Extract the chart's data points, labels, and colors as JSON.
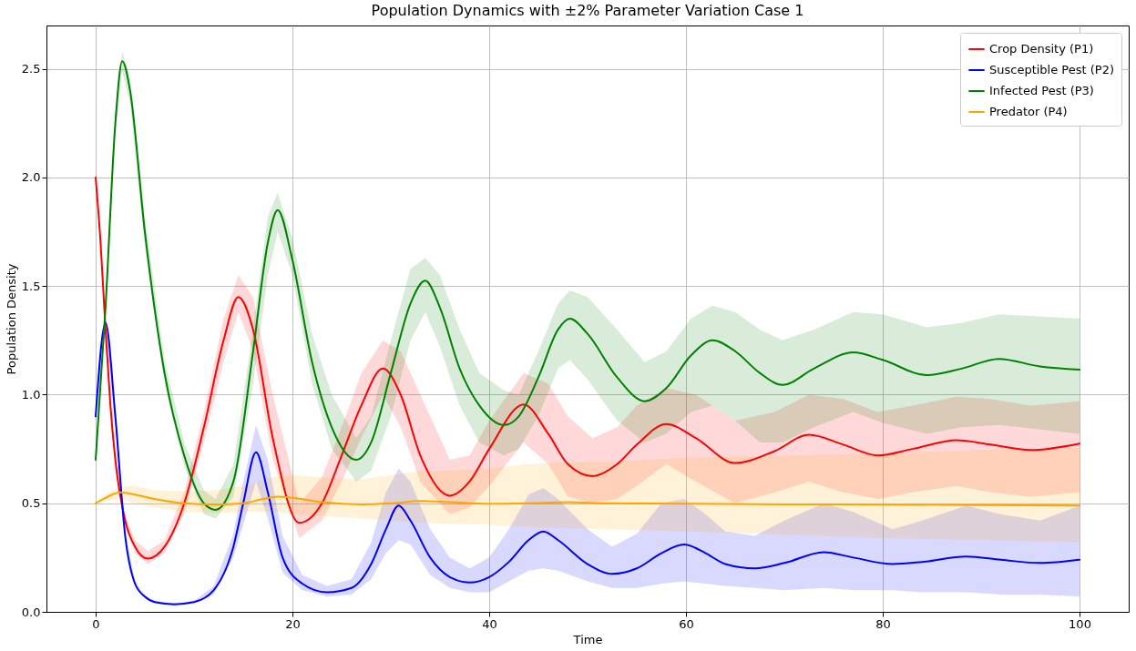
{
  "chart_data": {
    "type": "line",
    "title": "Population Dynamics with ±2% Parameter Variation Case 1",
    "xlabel": "Time",
    "ylabel": "Population Density",
    "xlim": [
      -5,
      105
    ],
    "ylim": [
      0,
      2.7
    ],
    "xticks": [
      0,
      20,
      40,
      60,
      80,
      100
    ],
    "yticks": [
      {
        "value": 0,
        "label": "0.0"
      },
      {
        "value": 0.5,
        "label": "0.5"
      },
      {
        "value": 1,
        "label": "1.0"
      },
      {
        "value": 1.5,
        "label": "1.5"
      },
      {
        "value": 2,
        "label": "2.0"
      },
      {
        "value": 2.5,
        "label": "2.5"
      }
    ],
    "grid": true,
    "legend": "top right",
    "series": [
      {
        "name": "Crop Density (P1)",
        "color": "#ff0000",
        "x": [
          0,
          0.5,
          1,
          1.5,
          2,
          3,
          4,
          5.3,
          7,
          9,
          11,
          13,
          14.5,
          16,
          18,
          20.7,
          23,
          25,
          27,
          29.2,
          31,
          33,
          36,
          38,
          40,
          43.5,
          46,
          48,
          50.5,
          53,
          55,
          58,
          61,
          65,
          69,
          72.5,
          76,
          79.5,
          83,
          87.5,
          91,
          95,
          100
        ],
        "values": [
          2.0,
          1.7,
          1.3,
          0.95,
          0.7,
          0.42,
          0.3,
          0.245,
          0.3,
          0.5,
          0.85,
          1.25,
          1.45,
          1.3,
          0.8,
          0.41,
          0.5,
          0.72,
          0.95,
          1.12,
          1.0,
          0.72,
          0.535,
          0.6,
          0.75,
          0.955,
          0.82,
          0.68,
          0.625,
          0.68,
          0.77,
          0.865,
          0.8,
          0.685,
          0.74,
          0.815,
          0.77,
          0.72,
          0.75,
          0.79,
          0.77,
          0.745,
          0.775
        ],
        "lower": [
          1.98,
          1.67,
          1.26,
          0.91,
          0.66,
          0.39,
          0.27,
          0.22,
          0.27,
          0.45,
          0.78,
          1.15,
          1.38,
          1.2,
          0.7,
          0.34,
          0.42,
          0.6,
          0.8,
          1.0,
          0.85,
          0.6,
          0.45,
          0.48,
          0.58,
          0.78,
          0.68,
          0.53,
          0.5,
          0.52,
          0.58,
          0.68,
          0.6,
          0.5,
          0.55,
          0.6,
          0.55,
          0.52,
          0.55,
          0.58,
          0.55,
          0.53,
          0.55
        ],
        "upper": [
          2.02,
          1.73,
          1.34,
          0.99,
          0.74,
          0.45,
          0.33,
          0.28,
          0.33,
          0.55,
          0.92,
          1.35,
          1.55,
          1.45,
          1.0,
          0.5,
          0.62,
          0.85,
          1.1,
          1.25,
          1.2,
          1.0,
          0.7,
          0.72,
          0.88,
          1.1,
          1.05,
          0.9,
          0.8,
          0.85,
          0.95,
          1.03,
          1.0,
          0.88,
          0.92,
          1.0,
          0.98,
          0.92,
          0.95,
          0.99,
          0.98,
          0.95,
          0.97
        ]
      },
      {
        "name": "Susceptible Pest (P2)",
        "color": "#0000ff",
        "x": [
          0,
          1,
          2,
          3,
          4,
          5,
          6,
          8,
          10,
          12,
          14,
          15,
          16.3,
          17.5,
          19,
          21,
          23.5,
          26,
          28,
          29.5,
          30.8,
          32,
          34,
          36,
          38,
          40,
          42,
          44,
          45.5,
          47,
          50,
          52.5,
          55,
          57.5,
          59.8,
          62,
          64,
          67,
          70,
          74,
          77,
          81,
          84,
          88.5,
          92,
          96,
          100
        ],
        "values": [
          0.9,
          1.33,
          0.9,
          0.35,
          0.13,
          0.07,
          0.045,
          0.035,
          0.045,
          0.1,
          0.3,
          0.5,
          0.735,
          0.55,
          0.25,
          0.13,
          0.09,
          0.11,
          0.22,
          0.38,
          0.49,
          0.42,
          0.25,
          0.16,
          0.135,
          0.16,
          0.23,
          0.33,
          0.37,
          0.33,
          0.22,
          0.175,
          0.2,
          0.27,
          0.31,
          0.27,
          0.22,
          0.2,
          0.225,
          0.275,
          0.25,
          0.22,
          0.23,
          0.255,
          0.24,
          0.225,
          0.24
        ],
        "lower": [
          0.88,
          1.29,
          0.86,
          0.33,
          0.12,
          0.065,
          0.04,
          0.03,
          0.04,
          0.08,
          0.25,
          0.4,
          0.6,
          0.43,
          0.18,
          0.1,
          0.07,
          0.08,
          0.15,
          0.27,
          0.33,
          0.31,
          0.17,
          0.11,
          0.09,
          0.09,
          0.14,
          0.19,
          0.2,
          0.19,
          0.14,
          0.11,
          0.11,
          0.13,
          0.14,
          0.13,
          0.12,
          0.11,
          0.1,
          0.11,
          0.1,
          0.1,
          0.09,
          0.09,
          0.08,
          0.08,
          0.07
        ],
        "upper": [
          0.92,
          1.37,
          0.94,
          0.37,
          0.14,
          0.075,
          0.05,
          0.04,
          0.05,
          0.12,
          0.36,
          0.6,
          0.86,
          0.7,
          0.35,
          0.17,
          0.12,
          0.15,
          0.32,
          0.55,
          0.66,
          0.6,
          0.38,
          0.25,
          0.2,
          0.25,
          0.38,
          0.54,
          0.57,
          0.52,
          0.38,
          0.3,
          0.36,
          0.5,
          0.52,
          0.45,
          0.37,
          0.35,
          0.42,
          0.5,
          0.46,
          0.38,
          0.42,
          0.49,
          0.45,
          0.42,
          0.49
        ]
      },
      {
        "name": "Infected Pest (P3)",
        "color": "#008000",
        "x": [
          0,
          1,
          2,
          2.7,
          3.5,
          5,
          7,
          9,
          11,
          12.2,
          14,
          16,
          17.5,
          18.5,
          20,
          22,
          24,
          26.5,
          28,
          30,
          32,
          33.5,
          35,
          37,
          39,
          41.5,
          43,
          45,
          47,
          48.2,
          50,
          53,
          55.8,
          58,
          60.5,
          62.7,
          65,
          67.5,
          69.8,
          73,
          77,
          80,
          84.5,
          88,
          91.8,
          96,
          100
        ],
        "values": [
          0.7,
          1.4,
          2.25,
          2.535,
          2.4,
          1.75,
          1.1,
          0.72,
          0.5,
          0.47,
          0.6,
          1.2,
          1.7,
          1.85,
          1.62,
          1.15,
          0.85,
          0.7,
          0.78,
          1.1,
          1.42,
          1.525,
          1.4,
          1.12,
          0.95,
          0.86,
          0.9,
          1.08,
          1.3,
          1.35,
          1.28,
          1.08,
          0.97,
          1.03,
          1.18,
          1.25,
          1.2,
          1.1,
          1.045,
          1.12,
          1.195,
          1.16,
          1.09,
          1.12,
          1.165,
          1.13,
          1.115
        ],
        "lower": [
          0.69,
          1.37,
          2.2,
          2.49,
          2.34,
          1.68,
          1.05,
          0.67,
          0.45,
          0.43,
          0.53,
          1.05,
          1.55,
          1.75,
          1.55,
          1.05,
          0.75,
          0.6,
          0.65,
          0.9,
          1.25,
          1.38,
          1.22,
          0.95,
          0.78,
          0.72,
          0.75,
          0.9,
          1.12,
          1.16,
          1.07,
          0.88,
          0.78,
          0.82,
          0.92,
          0.95,
          0.88,
          0.78,
          0.78,
          0.85,
          0.92,
          0.87,
          0.82,
          0.85,
          0.86,
          0.84,
          0.82
        ],
        "upper": [
          0.71,
          1.43,
          2.3,
          2.58,
          2.46,
          1.82,
          1.16,
          0.78,
          0.56,
          0.52,
          0.68,
          1.3,
          1.82,
          1.93,
          1.72,
          1.28,
          1.0,
          0.8,
          0.9,
          1.25,
          1.58,
          1.63,
          1.55,
          1.3,
          1.1,
          1.02,
          1.0,
          1.2,
          1.42,
          1.48,
          1.45,
          1.3,
          1.15,
          1.2,
          1.35,
          1.41,
          1.38,
          1.3,
          1.25,
          1.3,
          1.38,
          1.37,
          1.31,
          1.33,
          1.37,
          1.36,
          1.35
        ]
      },
      {
        "name": "Predator (P4)",
        "color": "#ffa500",
        "x": [
          0,
          1,
          2.5,
          4,
          6,
          9,
          12,
          15,
          17,
          18.5,
          20,
          23,
          27,
          30,
          33,
          36,
          40,
          44,
          48,
          52,
          60,
          70,
          80,
          90,
          100
        ],
        "values": [
          0.5,
          0.525,
          0.55,
          0.54,
          0.52,
          0.5,
          0.495,
          0.5,
          0.52,
          0.53,
          0.525,
          0.505,
          0.495,
          0.5,
          0.51,
          0.505,
          0.498,
          0.5,
          0.505,
          0.5,
          0.498,
          0.495,
          0.494,
          0.492,
          0.49
        ],
        "lower": [
          0.5,
          0.51,
          0.52,
          0.5,
          0.48,
          0.46,
          0.455,
          0.46,
          0.46,
          0.46,
          0.45,
          0.44,
          0.43,
          0.42,
          0.41,
          0.405,
          0.4,
          0.39,
          0.385,
          0.38,
          0.37,
          0.355,
          0.34,
          0.33,
          0.32
        ],
        "upper": [
          0.5,
          0.54,
          0.58,
          0.58,
          0.56,
          0.555,
          0.56,
          0.58,
          0.61,
          0.625,
          0.63,
          0.62,
          0.61,
          0.63,
          0.65,
          0.65,
          0.66,
          0.68,
          0.69,
          0.69,
          0.71,
          0.72,
          0.73,
          0.745,
          0.755
        ]
      }
    ]
  }
}
